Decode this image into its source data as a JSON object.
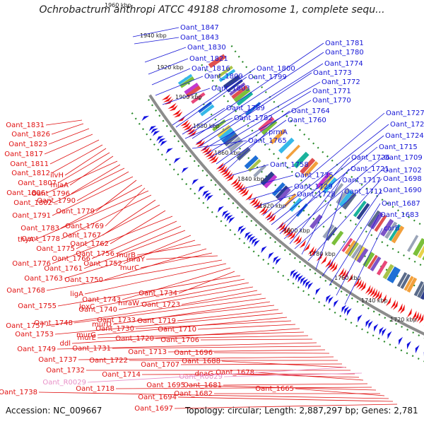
{
  "title": "Ochrobactrum anthropi ATCC 49188 chromosome 1, complete sequ...",
  "accession": "Accession: NC_009667",
  "topology": "Topology: circular; Length: 2,887,297 bp; Genes: 2,781",
  "colors": {
    "forward_label": "#1515d6",
    "reverse_label": "#e01010",
    "rna_label": "#e890c8",
    "backbone": "#8c8c8c",
    "ring_border": "#2a8a2a"
  },
  "scale_labels": [
    "1960 kbp",
    "1940 kbp",
    "1920 kbp",
    "1900 kbp",
    "1880 kbp",
    "1860 kbp",
    "1840 kbp",
    "1820 kbp",
    "1800 kbp",
    "1780 kbp",
    "1760 kbp",
    "1740 kbp",
    "1720 kbp"
  ],
  "forward_genes": [
    "Oant_1847",
    "Oant_1843",
    "Oant_1830",
    "Oant_1821",
    "Oant_1816",
    "Oant_1809",
    "Oant_1803",
    "Oant_1800",
    "Oant_1799",
    "Oant_1789",
    "Oant_1782",
    "Oant_1765",
    "Oant_1781",
    "Oant_1780",
    "Oant_1774",
    "Oant_1773",
    "Oant_1772",
    "Oant_1771",
    "Oant_1770",
    "Oant_1764",
    "Oant_1760",
    "prmA",
    "Oant_1758",
    "Oant_1735",
    "Oant_1729",
    "Oant_1728",
    "Oant_1727",
    "Oant_1725",
    "Oant_1724",
    "Oant_1715",
    "Oant_1726",
    "Oant_1709",
    "Oant_1721",
    "Oant_1702",
    "Oant_1717",
    "Oant_1698",
    "Oant_1711",
    "Oant_1690",
    "Oant_1687",
    "Oant_1683",
    "carB"
  ],
  "reverse_genes": [
    "Oant_1831",
    "Oant_1826",
    "Oant_1823",
    "Oant_1817",
    "Oant_1811",
    "Oant_1812",
    "ilvH",
    "Oant_1807",
    "miaA",
    "Oant_1806",
    "Oant_1796",
    "Oant_1802",
    "Oant_1790",
    "Oant_1791",
    "Oant_1779",
    "Oant_1783",
    "Oant_1769",
    "thyA",
    "Oant_1778",
    "Oant_1767",
    "Oant_1775",
    "Oant_1762",
    "Oant_1776",
    "Oant_1766",
    "Oant_1756",
    "Oant_1761",
    "Oant_1752",
    "Oant_1763",
    "murB",
    "Oant_1750",
    "murC",
    "mraY",
    "Oant_1768",
    "ligA",
    "Oant_1743",
    "Oant_1734",
    "Oant_1755",
    "lpxC",
    "mraW",
    "Oant_1740",
    "Oant_1723",
    "Oant_1757",
    "Oant_1748",
    "murD",
    "Oant_1733",
    "Oant_1719",
    "Oant_1753",
    "murG",
    "Oant_1730",
    "Oant_1710",
    "ddl",
    "murE",
    "Oant_1720",
    "Oant_1706",
    "Oant_1749",
    "Oant_1731",
    "Oant_1713",
    "Oant_1696",
    "Oant_1737",
    "Oant_1722",
    "Oant_1707",
    "Oant_1688",
    "Oant_1732",
    "Oant_1714",
    "dnaG",
    "Oant_1678",
    "Oant_1681",
    "Oant_1718",
    "Oant_1695",
    "Oant_1682",
    "Oant_1665",
    "Oant_1738",
    "Oant_1694",
    "Oant_1697"
  ],
  "rna_genes": [
    "Oant_R0029",
    "Oant_R0029"
  ]
}
